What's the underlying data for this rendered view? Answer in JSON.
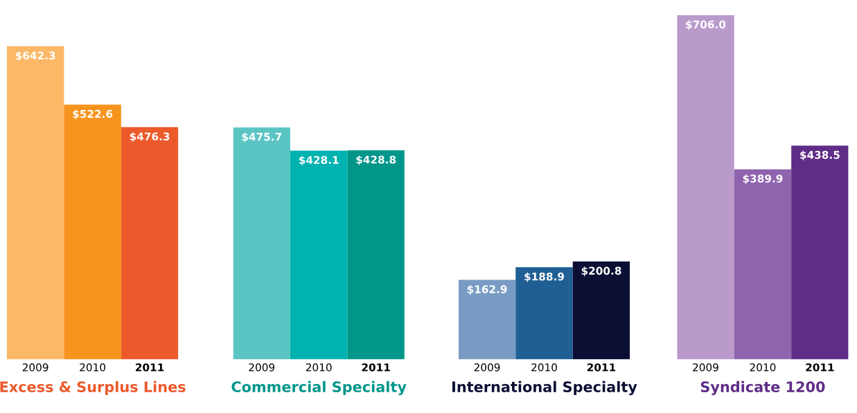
{
  "chart_data": [
    {
      "type": "bar",
      "xlabel": "Excess & Surplus Lines",
      "categories": [
        "2009",
        "2010",
        "2011"
      ],
      "values": [
        642.3,
        522.6,
        476.3
      ],
      "value_labels": [
        "$642.3",
        "$522.6",
        "$476.3"
      ],
      "colors": [
        "#fbb867",
        "#f7941d",
        "#ec5a2b"
      ],
      "tick_labels": "x"
    },
    {
      "type": "bar",
      "xlabel": "Commercial Specialty",
      "categories": [
        "2009",
        "2010",
        "2011"
      ],
      "values": [
        475.7,
        428.1,
        428.8
      ],
      "value_labels": [
        "$475.7",
        "$428.1",
        "$428.8"
      ],
      "colors": [
        "#5bc5c4",
        "#00b3b0",
        "#00968a"
      ],
      "tick_labels": "x"
    },
    {
      "type": "bar",
      "xlabel": "International Specialty",
      "categories": [
        "2009",
        "2010",
        "2011"
      ],
      "values": [
        162.9,
        188.9,
        200.8
      ],
      "value_labels": [
        "$162.9",
        "$188.9",
        "$200.8"
      ],
      "colors": [
        "#7a9cc4",
        "#1f5f94",
        "#0b0f33"
      ],
      "tick_labels": "x"
    },
    {
      "type": "bar",
      "xlabel": "Syndicate 1200",
      "categories": [
        "2009",
        "2010",
        "2011"
      ],
      "values": [
        706.0,
        389.9,
        438.5
      ],
      "value_labels": [
        "$706.0",
        "$389.9",
        "$438.5"
      ],
      "colors": [
        "#b99acb",
        "#8f63ae",
        "#5f2c87"
      ],
      "tick_labels": "x"
    }
  ]
}
